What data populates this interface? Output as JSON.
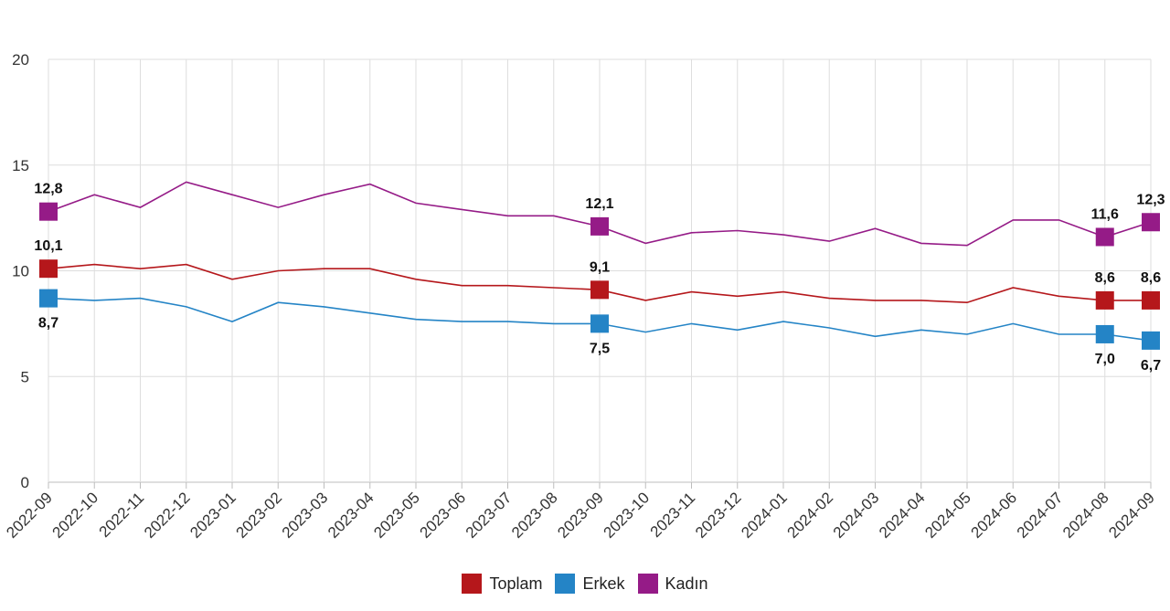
{
  "chart_data": {
    "type": "line",
    "x": [
      "2022-09",
      "2022-10",
      "2022-11",
      "2022-12",
      "2023-01",
      "2023-02",
      "2023-03",
      "2023-04",
      "2023-05",
      "2023-06",
      "2023-07",
      "2023-08",
      "2023-09",
      "2023-10",
      "2023-11",
      "2023-12",
      "2024-01",
      "2024-02",
      "2024-03",
      "2024-04",
      "2024-05",
      "2024-06",
      "2024-07",
      "2024-08",
      "2024-09"
    ],
    "ylim": [
      0,
      20
    ],
    "yticks": [
      0,
      5,
      10,
      15,
      20
    ],
    "grid": true,
    "legend_position": "bottom-center",
    "series": [
      {
        "name": "Toplam",
        "color": "#b5171b",
        "values": [
          10.1,
          10.3,
          10.1,
          10.3,
          9.6,
          10.0,
          10.1,
          10.1,
          9.6,
          9.3,
          9.3,
          9.2,
          9.1,
          8.6,
          9.0,
          8.8,
          9.0,
          8.7,
          8.6,
          8.6,
          8.5,
          9.2,
          8.8,
          8.6,
          8.6
        ],
        "labeled_points": [
          {
            "index": 0,
            "text": "10,1"
          },
          {
            "index": 12,
            "text": "9,1"
          },
          {
            "index": 23,
            "text": "8,6"
          },
          {
            "index": 24,
            "text": "8,6"
          }
        ]
      },
      {
        "name": "Erkek",
        "color": "#2484c6",
        "values": [
          8.7,
          8.6,
          8.7,
          8.3,
          7.6,
          8.5,
          8.3,
          8.0,
          7.7,
          7.6,
          7.6,
          7.5,
          7.5,
          7.1,
          7.5,
          7.2,
          7.6,
          7.3,
          6.9,
          7.2,
          7.0,
          7.5,
          7.0,
          7.0,
          6.7
        ],
        "labeled_points": [
          {
            "index": 0,
            "text": "8,7"
          },
          {
            "index": 12,
            "text": "7,5"
          },
          {
            "index": 23,
            "text": "7,0"
          },
          {
            "index": 24,
            "text": "6,7"
          }
        ]
      },
      {
        "name": "Kadın",
        "color": "#951b87",
        "values": [
          12.8,
          13.6,
          13.0,
          14.2,
          13.6,
          13.0,
          13.6,
          14.1,
          13.2,
          12.9,
          12.6,
          12.6,
          12.1,
          11.3,
          11.8,
          11.9,
          11.7,
          11.4,
          12.0,
          11.3,
          11.2,
          12.4,
          12.4,
          11.6,
          12.3
        ],
        "labeled_points": [
          {
            "index": 0,
            "text": "12,8"
          },
          {
            "index": 12,
            "text": "12,1"
          },
          {
            "index": 23,
            "text": "11,6"
          },
          {
            "index": 24,
            "text": "12,3"
          }
        ]
      }
    ]
  }
}
